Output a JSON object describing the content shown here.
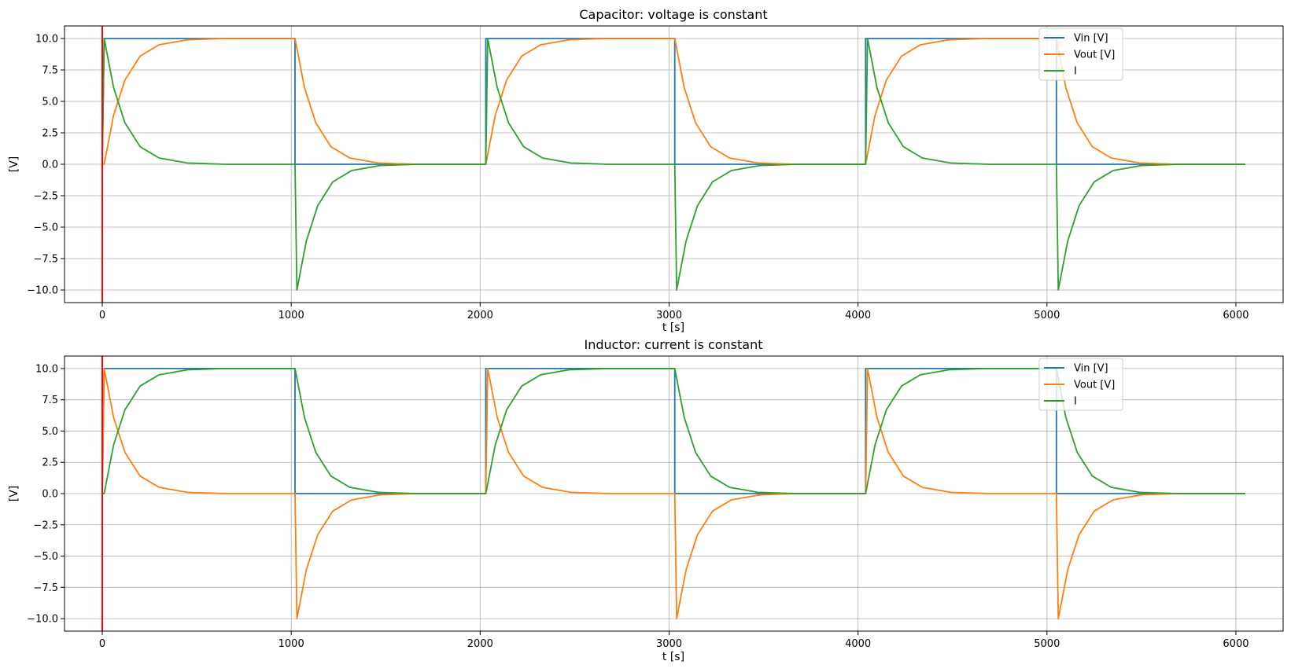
{
  "chart_data": [
    {
      "type": "line",
      "title": "Capacitor: voltage is constant",
      "xlabel": "t [s]",
      "ylabel": "[V]",
      "xlim": [
        -200,
        6250
      ],
      "ylim": [
        -11,
        11
      ],
      "xticks": [
        0,
        1000,
        2000,
        3000,
        4000,
        5000,
        6000
      ],
      "xtick_labels": [
        "0",
        "1000",
        "2000",
        "3000",
        "4000",
        "5000",
        "6000"
      ],
      "yticks": [
        10,
        7.5,
        5,
        2.5,
        0,
        -2.5,
        -5,
        -7.5,
        -10
      ],
      "ytick_labels": [
        "10.0",
        "7.5",
        "5.0",
        "2.5",
        "0.0",
        "−2.5",
        "−5.0",
        "−7.5",
        "−10.0"
      ],
      "grid": true,
      "legend_position": "top-right",
      "marker_line": {
        "x": 0,
        "color": "#ff0000"
      },
      "series": [
        {
          "name": "Vin [V]",
          "color": "#1f77b4",
          "x": [
            0,
            10,
            1020,
            1020,
            2030,
            2030,
            3030,
            3030,
            4040,
            4040,
            5050,
            5050,
            6050
          ],
          "y": [
            0,
            10,
            10,
            0,
            0,
            10,
            10,
            0,
            0,
            10,
            10,
            0,
            0
          ]
        },
        {
          "name": "Vout [V]",
          "color": "#ff7f0e",
          "x": [
            0,
            10,
            60,
            120,
            200,
            300,
            450,
            650,
            1020,
            1070,
            1130,
            1210,
            1310,
            1460,
            1660,
            2030,
            2080,
            2140,
            2220,
            2320,
            2470,
            2670,
            3030,
            3080,
            3140,
            3220,
            3320,
            3470,
            3670,
            4040,
            4090,
            4150,
            4230,
            4330,
            4480,
            4680,
            5050,
            5100,
            5160,
            5240,
            5340,
            5490,
            5690,
            6050
          ],
          "y": [
            0,
            0,
            3.9,
            6.7,
            8.6,
            9.5,
            9.9,
            10,
            10,
            6.1,
            3.3,
            1.4,
            0.5,
            0.1,
            0,
            0,
            3.9,
            6.7,
            8.6,
            9.5,
            9.9,
            10,
            10,
            6.1,
            3.3,
            1.4,
            0.5,
            0.1,
            0,
            0,
            3.9,
            6.7,
            8.6,
            9.5,
            9.9,
            10,
            10,
            6.1,
            3.3,
            1.4,
            0.5,
            0.1,
            0,
            0
          ]
        },
        {
          "name": "I",
          "color": "#2ca02c",
          "x": [
            0,
            10,
            60,
            120,
            200,
            300,
            450,
            650,
            1020,
            1030,
            1080,
            1140,
            1220,
            1320,
            1470,
            1670,
            2030,
            2040,
            2090,
            2150,
            2230,
            2330,
            2480,
            2680,
            3030,
            3040,
            3090,
            3150,
            3230,
            3330,
            3480,
            3680,
            4040,
            4050,
            4100,
            4160,
            4240,
            4340,
            4490,
            4690,
            5050,
            5060,
            5110,
            5170,
            5250,
            5350,
            5500,
            5700,
            6050
          ],
          "y": [
            0,
            10,
            6.1,
            3.3,
            1.4,
            0.5,
            0.1,
            0,
            0,
            -10,
            -6.1,
            -3.3,
            -1.4,
            -0.5,
            -0.1,
            0,
            0,
            10,
            6.1,
            3.3,
            1.4,
            0.5,
            0.1,
            0,
            0,
            -10,
            -6.1,
            -3.3,
            -1.4,
            -0.5,
            -0.1,
            0,
            0,
            10,
            6.1,
            3.3,
            1.4,
            0.5,
            0.1,
            0,
            0,
            -10,
            -6.1,
            -3.3,
            -1.4,
            -0.5,
            -0.1,
            0,
            0
          ]
        }
      ]
    },
    {
      "type": "line",
      "title": "Inductor: current is constant",
      "xlabel": "t [s]",
      "ylabel": "[V]",
      "xlim": [
        -200,
        6250
      ],
      "ylim": [
        -11,
        11
      ],
      "xticks": [
        0,
        1000,
        2000,
        3000,
        4000,
        5000,
        6000
      ],
      "xtick_labels": [
        "0",
        "1000",
        "2000",
        "3000",
        "4000",
        "5000",
        "6000"
      ],
      "yticks": [
        10,
        7.5,
        5,
        2.5,
        0,
        -2.5,
        -5,
        -7.5,
        -10
      ],
      "ytick_labels": [
        "10.0",
        "7.5",
        "5.0",
        "2.5",
        "0.0",
        "−2.5",
        "−5.0",
        "−7.5",
        "−10.0"
      ],
      "grid": true,
      "legend_position": "top-right",
      "marker_line": {
        "x": 0,
        "color": "#ff0000"
      },
      "series": [
        {
          "name": "Vin [V]",
          "color": "#1f77b4",
          "x": [
            0,
            10,
            1020,
            1020,
            2030,
            2030,
            3030,
            3030,
            4040,
            4040,
            5050,
            5050,
            6050
          ],
          "y": [
            0,
            10,
            10,
            0,
            0,
            10,
            10,
            0,
            0,
            10,
            10,
            0,
            0
          ]
        },
        {
          "name": "Vout [V]",
          "color": "#ff7f0e",
          "x": [
            0,
            10,
            60,
            120,
            200,
            300,
            450,
            650,
            1020,
            1030,
            1080,
            1140,
            1220,
            1320,
            1470,
            1670,
            2030,
            2040,
            2090,
            2150,
            2230,
            2330,
            2480,
            2680,
            3030,
            3040,
            3090,
            3150,
            3230,
            3330,
            3480,
            3680,
            4040,
            4050,
            4100,
            4160,
            4240,
            4340,
            4490,
            4690,
            5050,
            5060,
            5110,
            5170,
            5250,
            5350,
            5500,
            5700,
            6050
          ],
          "y": [
            0,
            10,
            6.1,
            3.3,
            1.4,
            0.5,
            0.1,
            0,
            0,
            -10,
            -6.1,
            -3.3,
            -1.4,
            -0.5,
            -0.1,
            0,
            0,
            10,
            6.1,
            3.3,
            1.4,
            0.5,
            0.1,
            0,
            0,
            -10,
            -6.1,
            -3.3,
            -1.4,
            -0.5,
            -0.1,
            0,
            0,
            10,
            6.1,
            3.3,
            1.4,
            0.5,
            0.1,
            0,
            0,
            -10,
            -6.1,
            -3.3,
            -1.4,
            -0.5,
            -0.1,
            0,
            0
          ]
        },
        {
          "name": "I",
          "color": "#2ca02c",
          "x": [
            0,
            10,
            60,
            120,
            200,
            300,
            450,
            650,
            1020,
            1070,
            1130,
            1210,
            1310,
            1460,
            1660,
            2030,
            2080,
            2140,
            2220,
            2320,
            2470,
            2670,
            3030,
            3080,
            3140,
            3220,
            3320,
            3470,
            3670,
            4040,
            4090,
            4150,
            4230,
            4330,
            4480,
            4680,
            5050,
            5100,
            5160,
            5240,
            5340,
            5490,
            5690,
            6050
          ],
          "y": [
            0,
            0,
            3.9,
            6.7,
            8.6,
            9.5,
            9.9,
            10,
            10,
            6.1,
            3.3,
            1.4,
            0.5,
            0.1,
            0,
            0,
            3.9,
            6.7,
            8.6,
            9.5,
            9.9,
            10,
            10,
            6.1,
            3.3,
            1.4,
            0.5,
            0.1,
            0,
            0,
            3.9,
            6.7,
            8.6,
            9.5,
            9.9,
            10,
            10,
            6.1,
            3.3,
            1.4,
            0.5,
            0.1,
            0,
            0
          ]
        }
      ]
    }
  ]
}
